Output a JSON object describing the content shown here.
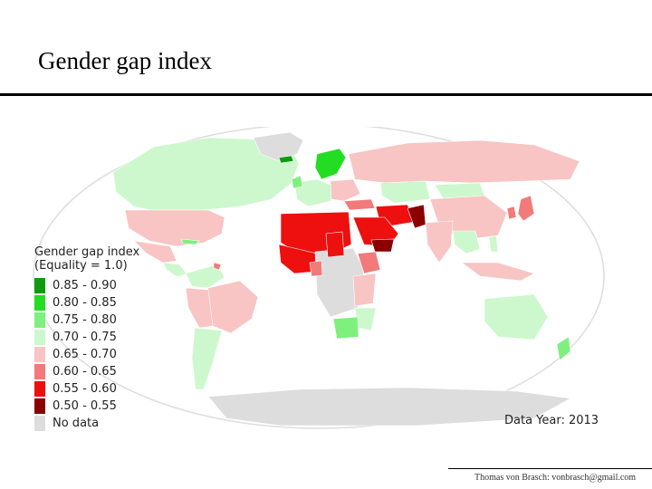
{
  "slide": {
    "title": "Gender gap index",
    "footer": "Thomas von Brasch: vonbrasch@gmail.com"
  },
  "map": {
    "legend_title_line1": "Gender gap index",
    "legend_title_line2": "(Equality = 1.0)",
    "data_year": "Data Year: 2013",
    "legend": [
      {
        "label": "0.85 - 0.90",
        "color": "#119911"
      },
      {
        "label": "0.80 - 0.85",
        "color": "#22dd22"
      },
      {
        "label": "0.75 - 0.80",
        "color": "#7ef07e"
      },
      {
        "label": "0.70 - 0.75",
        "color": "#cdf8cd"
      },
      {
        "label": "0.65 - 0.70",
        "color": "#f8c4c4"
      },
      {
        "label": "0.60 - 0.65",
        "color": "#f27a7a"
      },
      {
        "label": "0.55 - 0.60",
        "color": "#ee0f0f"
      },
      {
        "label": "0.50 - 0.55",
        "color": "#8b0000"
      },
      {
        "label": "No data",
        "color": "#dddddd"
      }
    ]
  }
}
